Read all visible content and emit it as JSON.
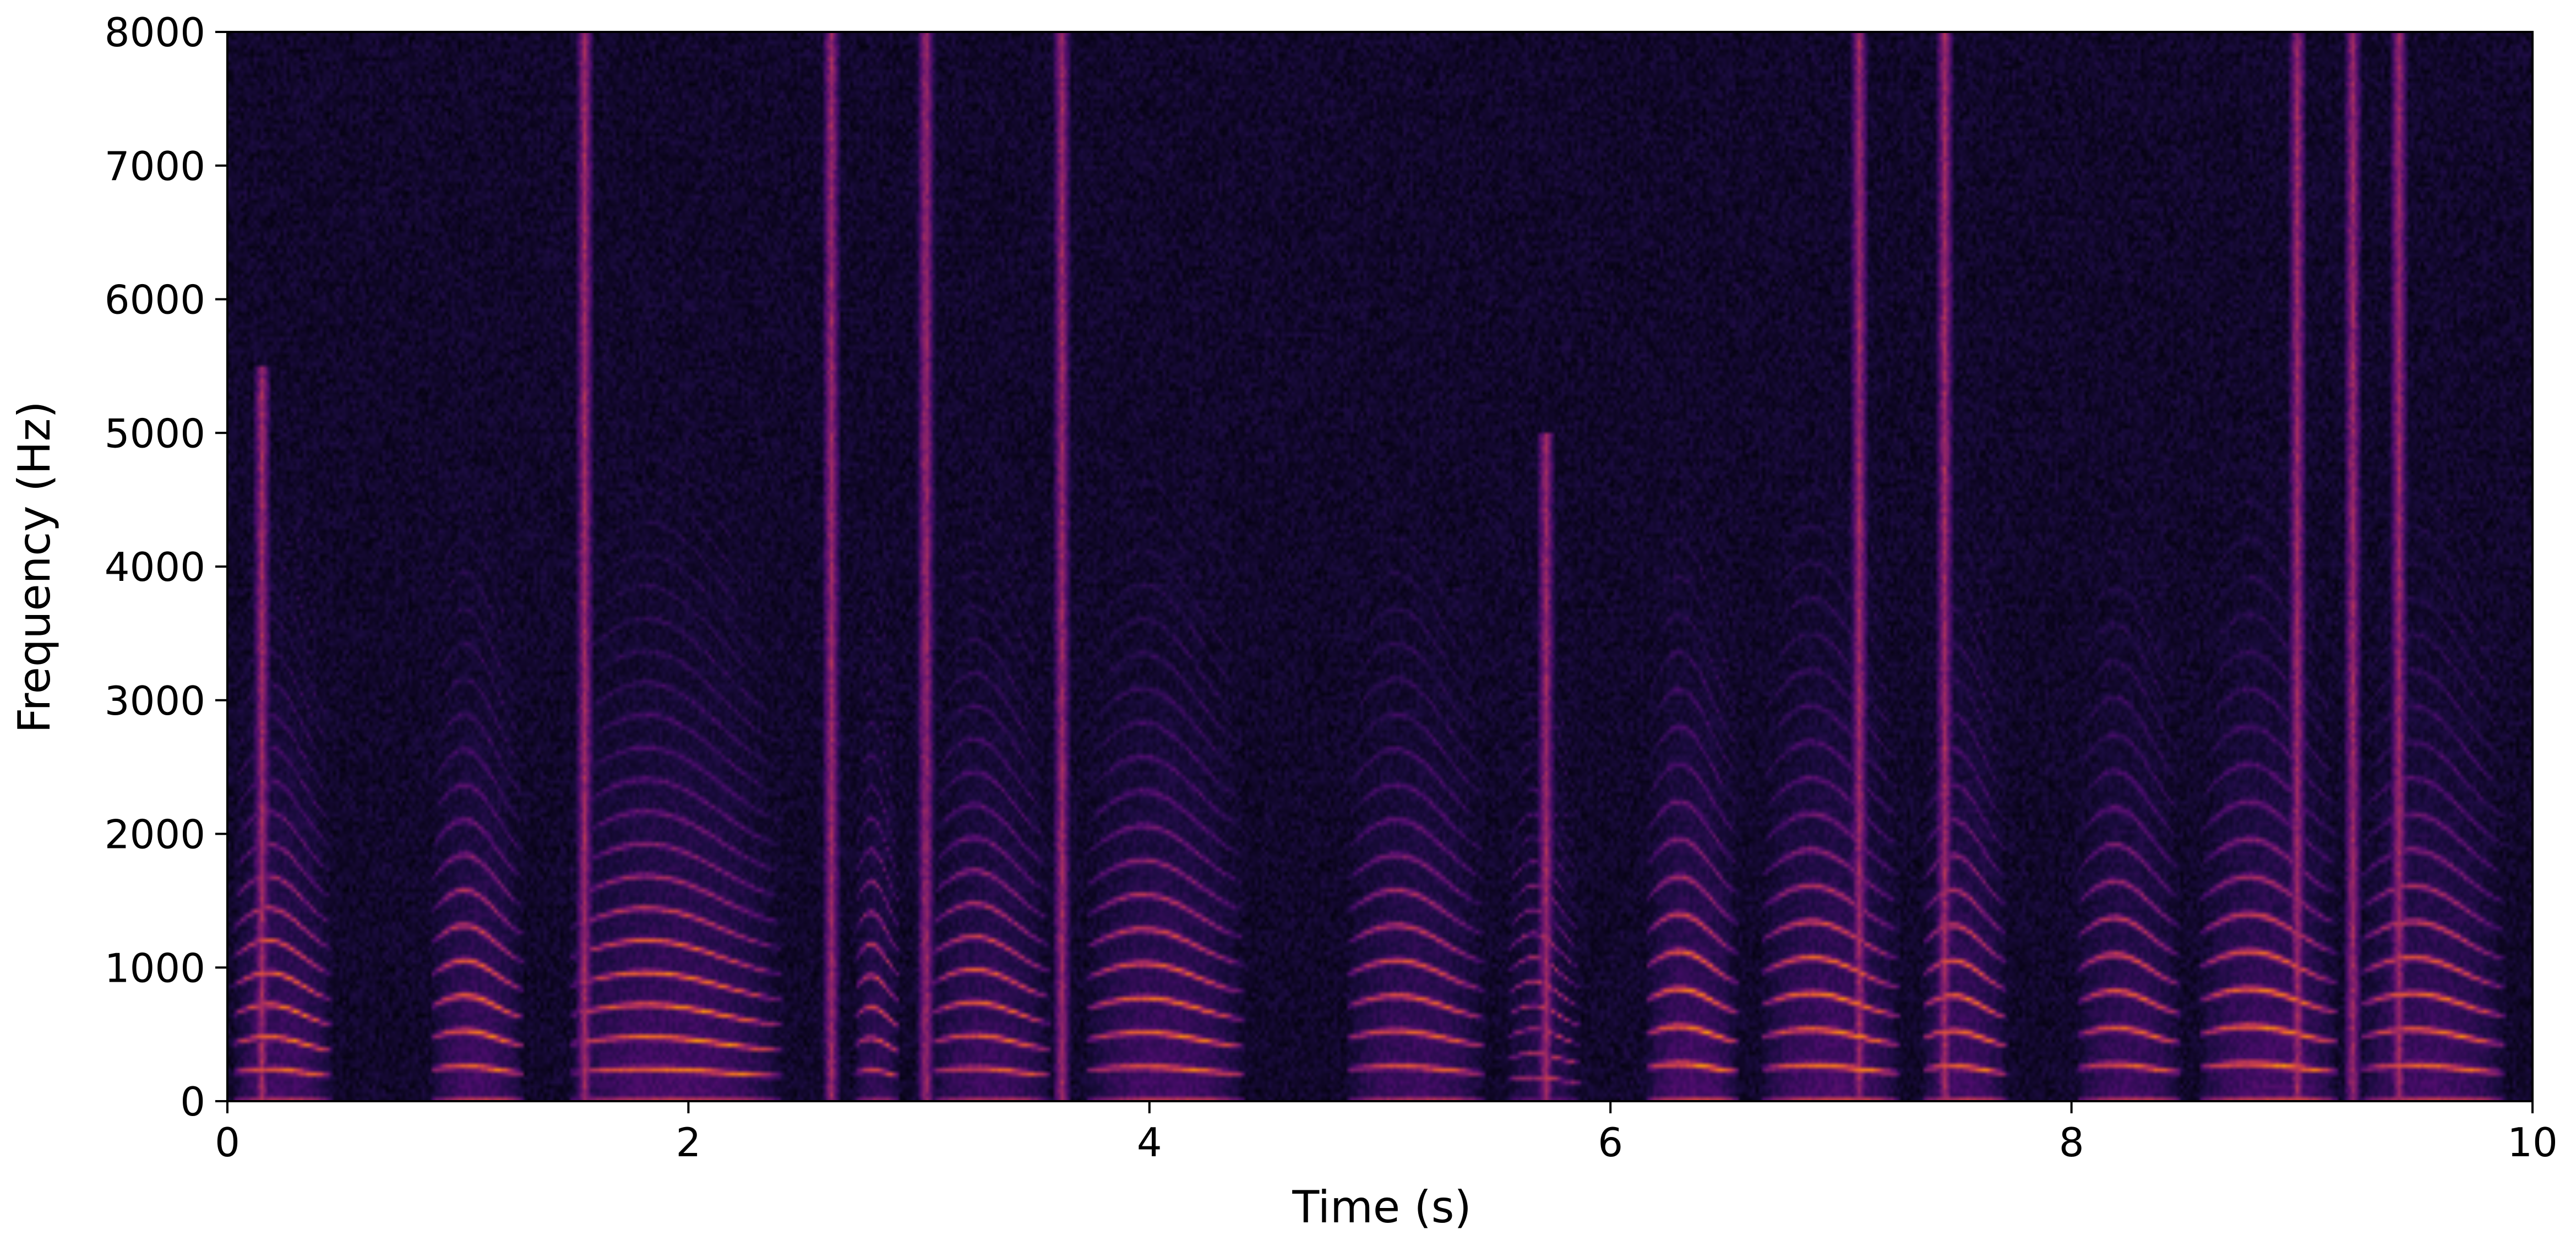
{
  "chart_data": {
    "type": "heatmap",
    "subtype": "spectrogram",
    "colormap": "inferno",
    "xlabel": "Time (s)",
    "ylabel": "Frequency (Hz)",
    "xlim": [
      0,
      10
    ],
    "ylim": [
      0,
      8000
    ],
    "xticks": [
      0,
      2,
      4,
      6,
      8,
      10
    ],
    "xtick_labels": [
      "0",
      "2",
      "4",
      "6",
      "8",
      "10"
    ],
    "yticks": [
      0,
      1000,
      2000,
      3000,
      4000,
      5000,
      6000,
      7000,
      8000
    ],
    "ytick_labels": [
      "0",
      "1000",
      "2000",
      "3000",
      "4000",
      "5000",
      "6000",
      "7000",
      "8000"
    ],
    "grid": false,
    "legend": "none",
    "voiced_segments": [
      {
        "start": 0.02,
        "end": 0.52,
        "f0": 215,
        "strength": 0.95
      },
      {
        "start": 0.88,
        "end": 1.35,
        "f0": 235,
        "strength": 0.95
      },
      {
        "start": 1.48,
        "end": 2.55,
        "f0": 215,
        "strength": 1.0
      },
      {
        "start": 2.72,
        "end": 2.95,
        "f0": 210,
        "strength": 0.8
      },
      {
        "start": 3.05,
        "end": 3.65,
        "f0": 220,
        "strength": 0.9
      },
      {
        "start": 3.72,
        "end": 4.52,
        "f0": 230,
        "strength": 0.95
      },
      {
        "start": 4.85,
        "end": 5.55,
        "f0": 235,
        "strength": 0.9
      },
      {
        "start": 5.55,
        "end": 5.92,
        "f0": 160,
        "strength": 0.7
      },
      {
        "start": 6.15,
        "end": 6.62,
        "f0": 250,
        "strength": 1.0
      },
      {
        "start": 6.65,
        "end": 7.35,
        "f0": 240,
        "strength": 1.0
      },
      {
        "start": 7.35,
        "end": 7.78,
        "f0": 235,
        "strength": 0.95
      },
      {
        "start": 8.02,
        "end": 8.55,
        "f0": 245,
        "strength": 0.9
      },
      {
        "start": 8.55,
        "end": 9.25,
        "f0": 250,
        "strength": 1.0
      },
      {
        "start": 9.25,
        "end": 9.98,
        "f0": 240,
        "strength": 0.95
      }
    ],
    "fricative_bursts": [
      {
        "time": 0.15,
        "top": 5500
      },
      {
        "time": 1.55,
        "top": 8000
      },
      {
        "time": 2.62,
        "top": 8000
      },
      {
        "time": 3.03,
        "top": 8000
      },
      {
        "time": 3.62,
        "top": 8000
      },
      {
        "time": 5.72,
        "top": 5000
      },
      {
        "time": 7.08,
        "top": 8000
      },
      {
        "time": 7.45,
        "top": 8000
      },
      {
        "time": 8.98,
        "top": 8000
      },
      {
        "time": 9.22,
        "top": 8000
      },
      {
        "time": 9.42,
        "top": 8000
      }
    ]
  }
}
